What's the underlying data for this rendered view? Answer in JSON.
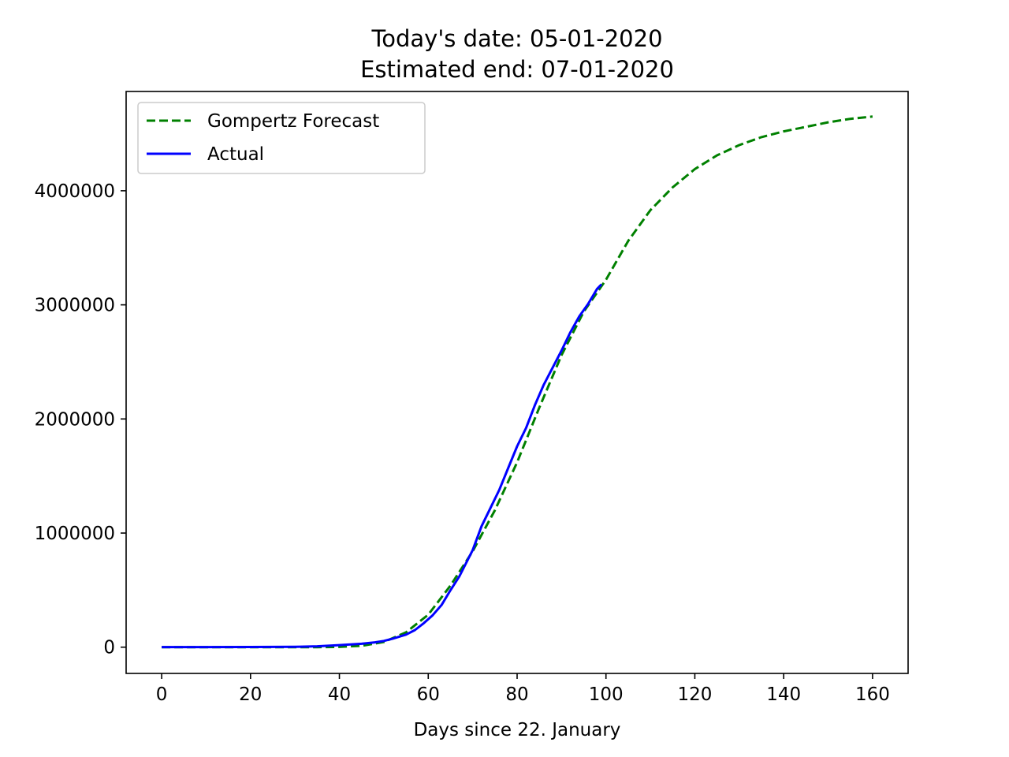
{
  "chart_data": {
    "type": "line",
    "title": "Today's date: 05-01-2020",
    "subtitle": "Estimated end: 07-01-2020",
    "xlabel": "Days since 22. January",
    "ylabel": "",
    "xlim": [
      -8,
      168
    ],
    "ylim": [
      -230000,
      4870000
    ],
    "x_ticks": [
      0,
      20,
      40,
      60,
      80,
      100,
      120,
      140,
      160
    ],
    "x_tick_labels": [
      "0",
      "20",
      "40",
      "60",
      "80",
      "100",
      "120",
      "140",
      "160"
    ],
    "y_ticks": [
      0,
      1000000,
      2000000,
      3000000,
      4000000
    ],
    "y_tick_labels": [
      "0",
      "1000000",
      "2000000",
      "3000000",
      "4000000"
    ],
    "grid": false,
    "legend_position": "top-left",
    "series": [
      {
        "name": "Gompertz Forecast",
        "color": "#008000",
        "style": "dashed",
        "x": [
          0,
          10,
          20,
          30,
          35,
          40,
          45,
          50,
          55,
          60,
          65,
          70,
          75,
          80,
          85,
          90,
          95,
          100,
          105,
          110,
          115,
          120,
          125,
          130,
          135,
          140,
          145,
          150,
          155,
          160
        ],
        "y": [
          0,
          0,
          0,
          0,
          0,
          2000,
          12000,
          45000,
          130000,
          285000,
          540000,
          840000,
          1200000,
          1620000,
          2100000,
          2560000,
          2940000,
          3220000,
          3560000,
          3830000,
          4030000,
          4190000,
          4310000,
          4400000,
          4470000,
          4520000,
          4560000,
          4600000,
          4630000,
          4650000
        ]
      },
      {
        "name": "Actual",
        "color": "#0000ff",
        "style": "solid",
        "x": [
          0,
          10,
          20,
          30,
          35,
          40,
          45,
          48,
          50,
          52,
          55,
          57,
          59,
          61,
          63,
          65,
          67,
          70,
          72,
          74,
          76,
          78,
          80,
          82,
          84,
          86,
          88,
          90,
          92,
          94,
          96,
          98,
          99
        ],
        "y": [
          555,
          1000,
          1500,
          3000,
          8000,
          18000,
          30000,
          42000,
          55000,
          75000,
          110000,
          150000,
          210000,
          280000,
          370000,
          500000,
          620000,
          850000,
          1060000,
          1220000,
          1380000,
          1570000,
          1760000,
          1920000,
          2120000,
          2300000,
          2450000,
          2600000,
          2760000,
          2900000,
          3010000,
          3140000,
          3180000
        ]
      }
    ]
  }
}
